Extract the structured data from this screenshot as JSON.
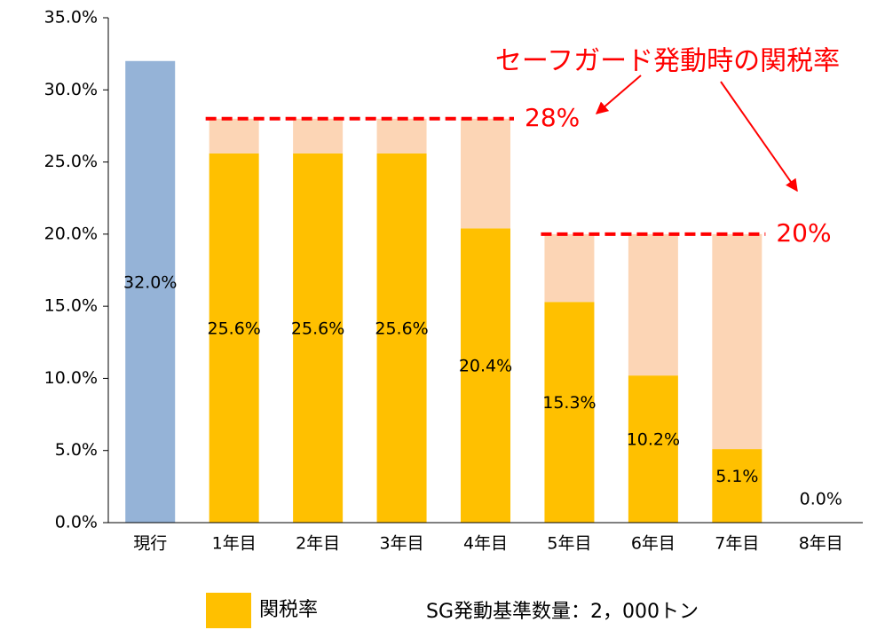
{
  "chart_data": {
    "type": "bar",
    "stacked": true,
    "categories": [
      "現行",
      "1年目",
      "2年目",
      "3年目",
      "4年目",
      "5年目",
      "6年目",
      "7年目",
      "8年目"
    ],
    "series": [
      {
        "name": "関税率",
        "color": "#ffc000",
        "colors": [
          "#95b3d7",
          "#ffc000",
          "#ffc000",
          "#ffc000",
          "#ffc000",
          "#ffc000",
          "#ffc000",
          "#ffc000",
          "#ffc000"
        ],
        "values": [
          32.0,
          25.6,
          25.6,
          25.6,
          20.4,
          15.3,
          10.2,
          5.1,
          0.0
        ],
        "value_labels": [
          "32.0%",
          "25.6%",
          "25.6%",
          "25.6%",
          "20.4%",
          "15.3%",
          "10.2%",
          "5.1%",
          "0.0%"
        ]
      },
      {
        "color": "#fcd5b5",
        "values": [
          0,
          2.4,
          2.4,
          2.4,
          7.6,
          4.7,
          9.8,
          14.9,
          0
        ]
      }
    ],
    "ylim": [
      0,
      35
    ],
    "yticks": [
      {
        "value": 0,
        "label": "0.0%"
      },
      {
        "value": 5,
        "label": "5.0%"
      },
      {
        "value": 10,
        "label": "10.0%"
      },
      {
        "value": 15,
        "label": "15.0%"
      },
      {
        "value": 20,
        "label": "20.0%"
      },
      {
        "value": 25,
        "label": "25.0%"
      },
      {
        "value": 30,
        "label": "30.0%"
      },
      {
        "value": 35,
        "label": "35.0%"
      }
    ],
    "annotation": "セーフガード発動時の関税率",
    "reference_lines": [
      {
        "value": 28,
        "label": "28%",
        "from": 1,
        "to": 4,
        "color": "#ff0000"
      },
      {
        "value": 20,
        "label": "20%",
        "from": 5,
        "to": 7,
        "color": "#ff0000"
      }
    ],
    "note": "SG発動基準数量：2，000トン"
  }
}
